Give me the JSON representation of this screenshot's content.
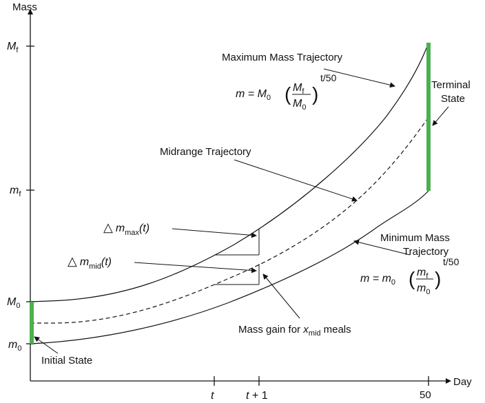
{
  "axes": {
    "y_label": "Mass",
    "x_label": "Day",
    "y_ticks": {
      "Mf_main": "M",
      "Mf_sub": "f",
      "mf_main": "m",
      "mf_sub": "f",
      "M0_main": "M",
      "M0_sub": "0",
      "m0_main": "m",
      "m0_sub": "0"
    },
    "x_ticks": {
      "t": "t",
      "t1_a": "t",
      "t1_b": " + 1",
      "fifty": "50"
    }
  },
  "labels": {
    "max_trajectory": "Maximum Mass Trajectory",
    "midrange_trajectory": "Midrange Trajectory",
    "min_trajectory_line1": "Minimum Mass",
    "min_trajectory_line2": "Trajectory",
    "terminal_line1": "Terminal",
    "terminal_line2": "State",
    "initial_state": "Initial State",
    "mass_gain_prefix": "Mass gain for ",
    "mass_gain_var": "x",
    "mass_gain_sub": "mid",
    "mass_gain_suffix": " meals",
    "delta_symbol": "△",
    "dmax_var": "m",
    "dmax_sub": "max",
    "dmax_arg": "(t)",
    "dmid_var": "m",
    "dmid_sub": "mid",
    "dmid_arg": "(t)"
  },
  "formulas": {
    "max": {
      "lhs": "m = M",
      "lhs_sub": "0",
      "num": "M",
      "num_sub": "f",
      "den": "M",
      "den_sub": "0",
      "exponent": "t/50",
      "lparen": "(",
      "rparen": ")"
    },
    "min": {
      "lhs": "m = m",
      "lhs_sub": "0",
      "num": "m",
      "num_sub": "f",
      "den": "m",
      "den_sub": "0",
      "exponent": "t/50",
      "lparen": "(",
      "rparen": ")"
    }
  },
  "colors": {
    "state_bar": "#4caf50",
    "ink": "#111111"
  }
}
